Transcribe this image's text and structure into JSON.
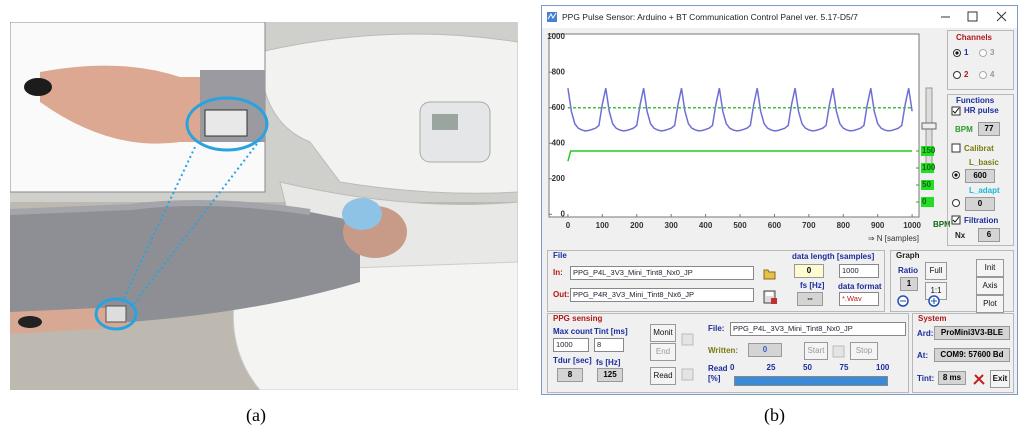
{
  "figure": {
    "label_a": "(a)",
    "label_b": "(b)"
  },
  "window": {
    "title": "PPG Pulse Sensor: Arduino + BT Communication Control Panel ver. 5.17-D5/7",
    "channels": {
      "title": "Channels",
      "options": [
        "1",
        "2",
        "3",
        "4"
      ]
    },
    "functions": {
      "title": "Functions",
      "hr_pulse": "HR pulse",
      "bpm_label": "BPM",
      "bpm_value": "77",
      "calibrat": "Calibrat",
      "l_basic": "L_basic",
      "l_basic_value": "600",
      "l_adapt": "L_adapt",
      "l_adapt_value": "0",
      "filtration": "Filtration",
      "nx_label": "Nx",
      "nx_value": "6"
    },
    "file": {
      "title": "File",
      "in_label": "In:",
      "in_value": "PPG_P4L_3V3_Mini_Tint8_Nx0_JP",
      "out_label": "Out:",
      "out_value": "PPG_P4R_3V3_Mini_Tint8_Nx6_JP",
      "data_length_label": "data length [samples]",
      "data_length_value": "0",
      "data_length_select": "1000",
      "fs_label": "fs [Hz]",
      "fs_value": "--",
      "data_format_label": "data format",
      "data_format_value": "*.Wav"
    },
    "graph": {
      "title": "Graph",
      "ratio_label": "Ratio",
      "ratio_value": "1",
      "full": "Full",
      "one_to_one": "1:1",
      "init": "Init",
      "axis": "Axis",
      "plot": "Plot"
    },
    "sensing": {
      "title": "PPG sensing",
      "max_count_label": "Max count",
      "max_count_value": "1000",
      "tint_label": "Tint [ms]",
      "tint_value": "8",
      "tdur_label": "Tdur [sec]",
      "tdur_value": "8",
      "fs_label": "fs [Hz]",
      "fs_value": "125",
      "monit": "Monit",
      "end": "End",
      "read": "Read",
      "file_label": "File:",
      "file_value": "PPG_P4L_3V3_Mini_Tint8_Nx0_JP",
      "written_label": "Written:",
      "written_value": "0",
      "start": "Start",
      "stop": "Stop",
      "read_pct_label": "Read [%]",
      "read_ticks": [
        "0",
        "25",
        "50",
        "75",
        "100"
      ]
    },
    "system": {
      "title": "System",
      "ard_label": "Ard:",
      "ard_value": "ProMini3V3-BLE",
      "at_label": "At:",
      "at_value": "COM9: 57600 Bd",
      "tint_label": "Tint:",
      "tint_value": "8 ms",
      "exit": "Exit"
    }
  },
  "chart_data": {
    "type": "line",
    "xlabel": "⇒ N [samples]",
    "y2label": "BPM",
    "xlim": [
      -55,
      1020
    ],
    "ylim": [
      -15,
      1015
    ],
    "y2lim": [
      -44,
      494
    ],
    "xticks": [
      0,
      100,
      200,
      300,
      400,
      500,
      600,
      700,
      800,
      900,
      1000
    ],
    "yticks": [
      0,
      200,
      400,
      600,
      800,
      1000
    ],
    "y2ticks": [
      0,
      50,
      100,
      150
    ],
    "grid": false,
    "series": [
      {
        "color": "#6e6ed6",
        "x": [
          0,
          10,
          20,
          30,
          40,
          50,
          60,
          70,
          80,
          90,
          100,
          110,
          120,
          130,
          140,
          150,
          160,
          170,
          180,
          190,
          200,
          210,
          220,
          230,
          240,
          250,
          260,
          270,
          280,
          290,
          300,
          310,
          320,
          330,
          340,
          350,
          360,
          370,
          380,
          390,
          400,
          410,
          420,
          430,
          440,
          450,
          460,
          470,
          480,
          490,
          500,
          510,
          520,
          530,
          540,
          550,
          560,
          570,
          580,
          590,
          600,
          610,
          620,
          630,
          640,
          650,
          660,
          670,
          680,
          690,
          700,
          710,
          720,
          730,
          740,
          750,
          760,
          770,
          780,
          790,
          800,
          810,
          820,
          830,
          840,
          850,
          860,
          870,
          880,
          890,
          900,
          910,
          920,
          930,
          940,
          950,
          960,
          970,
          980,
          990,
          1000
        ],
        "values": [
          710,
          580,
          510,
          485,
          475,
          470,
          472,
          478,
          485,
          500,
          620,
          710,
          580,
          510,
          485,
          475,
          470,
          472,
          478,
          485,
          500,
          620,
          710,
          580,
          510,
          485,
          475,
          470,
          472,
          478,
          485,
          500,
          620,
          710,
          580,
          510,
          485,
          475,
          470,
          472,
          478,
          485,
          500,
          620,
          710,
          580,
          510,
          485,
          475,
          470,
          472,
          478,
          485,
          500,
          620,
          710,
          580,
          510,
          485,
          475,
          470,
          472,
          478,
          485,
          500,
          620,
          710,
          580,
          510,
          485,
          475,
          470,
          472,
          478,
          485,
          500,
          620,
          710,
          580,
          510,
          485,
          475,
          470,
          472,
          478,
          485,
          500,
          620,
          710,
          580,
          510,
          485,
          475,
          470,
          472,
          478,
          485,
          500,
          620,
          710,
          580
        ]
      },
      {
        "color": "#44bb44",
        "dashed": true,
        "x": [
          0,
          1000
        ],
        "values": [
          600,
          600
        ]
      },
      {
        "color": "#22cc22",
        "axis": "y2",
        "x": [
          0,
          8,
          1000
        ],
        "values": [
          120,
          150,
          150
        ]
      }
    ]
  }
}
